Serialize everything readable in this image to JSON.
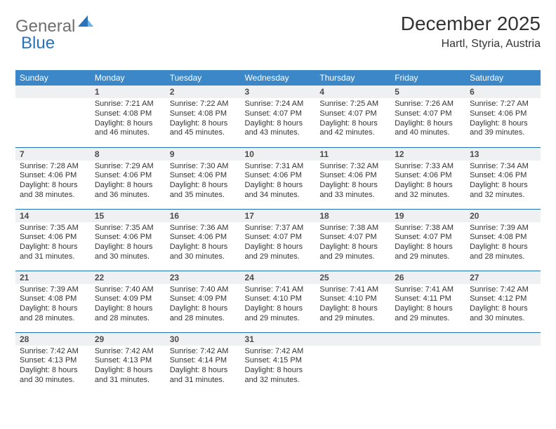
{
  "logo": {
    "gray": "General",
    "blue": "Blue"
  },
  "header": {
    "month_title": "December 2025",
    "location": "Hartl, Styria, Austria"
  },
  "colors": {
    "header_bg": "#3b87c8",
    "header_text": "#ffffff",
    "daynum_bg": "#eef0f1",
    "row_border": "#1f6fb2"
  },
  "weekdays": [
    "Sunday",
    "Monday",
    "Tuesday",
    "Wednesday",
    "Thursday",
    "Friday",
    "Saturday"
  ],
  "calendar": {
    "first_weekday_index": 1,
    "days": [
      {
        "n": 1,
        "sunrise": "7:21 AM",
        "sunset": "4:08 PM",
        "daylight": "8 hours and 46 minutes."
      },
      {
        "n": 2,
        "sunrise": "7:22 AM",
        "sunset": "4:08 PM",
        "daylight": "8 hours and 45 minutes."
      },
      {
        "n": 3,
        "sunrise": "7:24 AM",
        "sunset": "4:07 PM",
        "daylight": "8 hours and 43 minutes."
      },
      {
        "n": 4,
        "sunrise": "7:25 AM",
        "sunset": "4:07 PM",
        "daylight": "8 hours and 42 minutes."
      },
      {
        "n": 5,
        "sunrise": "7:26 AM",
        "sunset": "4:07 PM",
        "daylight": "8 hours and 40 minutes."
      },
      {
        "n": 6,
        "sunrise": "7:27 AM",
        "sunset": "4:06 PM",
        "daylight": "8 hours and 39 minutes."
      },
      {
        "n": 7,
        "sunrise": "7:28 AM",
        "sunset": "4:06 PM",
        "daylight": "8 hours and 38 minutes."
      },
      {
        "n": 8,
        "sunrise": "7:29 AM",
        "sunset": "4:06 PM",
        "daylight": "8 hours and 36 minutes."
      },
      {
        "n": 9,
        "sunrise": "7:30 AM",
        "sunset": "4:06 PM",
        "daylight": "8 hours and 35 minutes."
      },
      {
        "n": 10,
        "sunrise": "7:31 AM",
        "sunset": "4:06 PM",
        "daylight": "8 hours and 34 minutes."
      },
      {
        "n": 11,
        "sunrise": "7:32 AM",
        "sunset": "4:06 PM",
        "daylight": "8 hours and 33 minutes."
      },
      {
        "n": 12,
        "sunrise": "7:33 AM",
        "sunset": "4:06 PM",
        "daylight": "8 hours and 32 minutes."
      },
      {
        "n": 13,
        "sunrise": "7:34 AM",
        "sunset": "4:06 PM",
        "daylight": "8 hours and 32 minutes."
      },
      {
        "n": 14,
        "sunrise": "7:35 AM",
        "sunset": "4:06 PM",
        "daylight": "8 hours and 31 minutes."
      },
      {
        "n": 15,
        "sunrise": "7:35 AM",
        "sunset": "4:06 PM",
        "daylight": "8 hours and 30 minutes."
      },
      {
        "n": 16,
        "sunrise": "7:36 AM",
        "sunset": "4:06 PM",
        "daylight": "8 hours and 30 minutes."
      },
      {
        "n": 17,
        "sunrise": "7:37 AM",
        "sunset": "4:07 PM",
        "daylight": "8 hours and 29 minutes."
      },
      {
        "n": 18,
        "sunrise": "7:38 AM",
        "sunset": "4:07 PM",
        "daylight": "8 hours and 29 minutes."
      },
      {
        "n": 19,
        "sunrise": "7:38 AM",
        "sunset": "4:07 PM",
        "daylight": "8 hours and 29 minutes."
      },
      {
        "n": 20,
        "sunrise": "7:39 AM",
        "sunset": "4:08 PM",
        "daylight": "8 hours and 28 minutes."
      },
      {
        "n": 21,
        "sunrise": "7:39 AM",
        "sunset": "4:08 PM",
        "daylight": "8 hours and 28 minutes."
      },
      {
        "n": 22,
        "sunrise": "7:40 AM",
        "sunset": "4:09 PM",
        "daylight": "8 hours and 28 minutes."
      },
      {
        "n": 23,
        "sunrise": "7:40 AM",
        "sunset": "4:09 PM",
        "daylight": "8 hours and 28 minutes."
      },
      {
        "n": 24,
        "sunrise": "7:41 AM",
        "sunset": "4:10 PM",
        "daylight": "8 hours and 29 minutes."
      },
      {
        "n": 25,
        "sunrise": "7:41 AM",
        "sunset": "4:10 PM",
        "daylight": "8 hours and 29 minutes."
      },
      {
        "n": 26,
        "sunrise": "7:41 AM",
        "sunset": "4:11 PM",
        "daylight": "8 hours and 29 minutes."
      },
      {
        "n": 27,
        "sunrise": "7:42 AM",
        "sunset": "4:12 PM",
        "daylight": "8 hours and 30 minutes."
      },
      {
        "n": 28,
        "sunrise": "7:42 AM",
        "sunset": "4:13 PM",
        "daylight": "8 hours and 30 minutes."
      },
      {
        "n": 29,
        "sunrise": "7:42 AM",
        "sunset": "4:13 PM",
        "daylight": "8 hours and 31 minutes."
      },
      {
        "n": 30,
        "sunrise": "7:42 AM",
        "sunset": "4:14 PM",
        "daylight": "8 hours and 31 minutes."
      },
      {
        "n": 31,
        "sunrise": "7:42 AM",
        "sunset": "4:15 PM",
        "daylight": "8 hours and 32 minutes."
      }
    ]
  },
  "labels": {
    "sunrise": "Sunrise:",
    "sunset": "Sunset:",
    "daylight": "Daylight:"
  }
}
